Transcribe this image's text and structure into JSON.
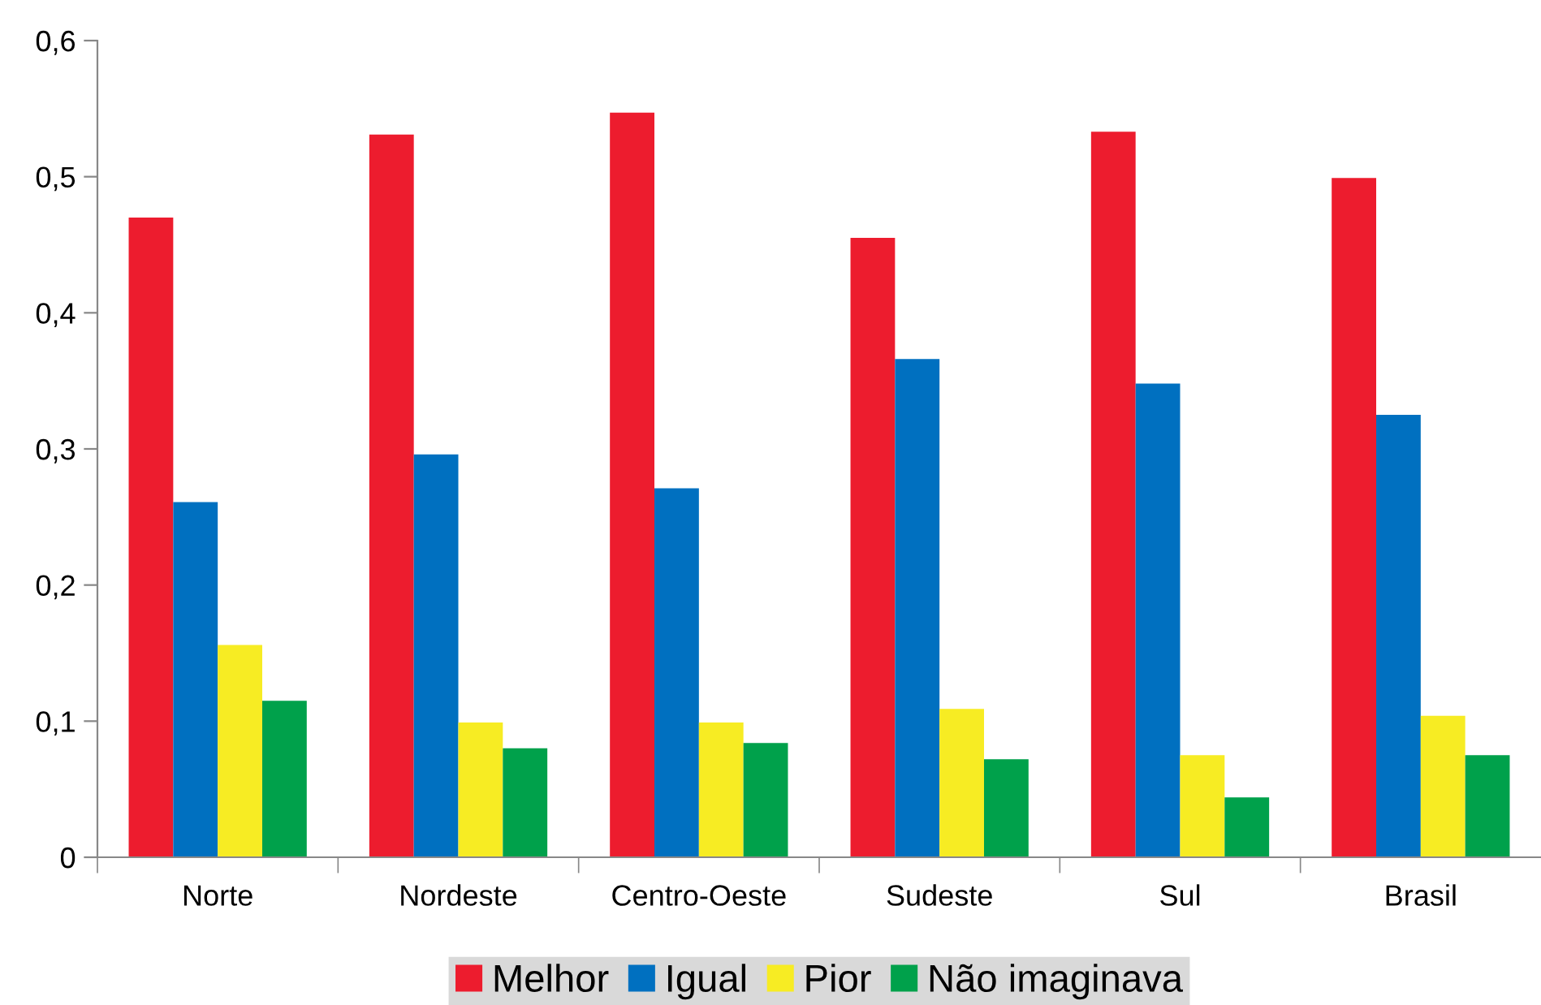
{
  "chart_data": {
    "type": "bar",
    "categories": [
      "Norte",
      "Nordeste",
      "Centro-Oeste",
      "Sudeste",
      "Sul",
      "Brasil"
    ],
    "series": [
      {
        "name": "Melhor",
        "color": "#ed1c2e",
        "values": [
          0.47,
          0.531,
          0.547,
          0.455,
          0.533,
          0.499
        ]
      },
      {
        "name": "Igual",
        "color": "#0070c0",
        "values": [
          0.261,
          0.296,
          0.271,
          0.366,
          0.348,
          0.325
        ]
      },
      {
        "name": "Pior",
        "color": "#f7ec23",
        "values": [
          0.156,
          0.099,
          0.099,
          0.109,
          0.075,
          0.104
        ]
      },
      {
        "name": "Não imaginava",
        "color": "#00a14b",
        "values": [
          0.115,
          0.08,
          0.084,
          0.072,
          0.044,
          0.075
        ]
      }
    ],
    "ylim": [
      0,
      0.6
    ],
    "yticks": [
      0,
      {
        "value": 0.1,
        "label": "0,1"
      },
      {
        "value": 0.2,
        "label": "0,2"
      },
      {
        "value": 0.3,
        "label": "0,3"
      },
      {
        "value": 0.4,
        "label": "0,4"
      },
      {
        "value": 0.5,
        "label": "0,5"
      },
      {
        "value": 0.6,
        "label": "0,6"
      }
    ],
    "grid": false,
    "legend": "bottom"
  }
}
